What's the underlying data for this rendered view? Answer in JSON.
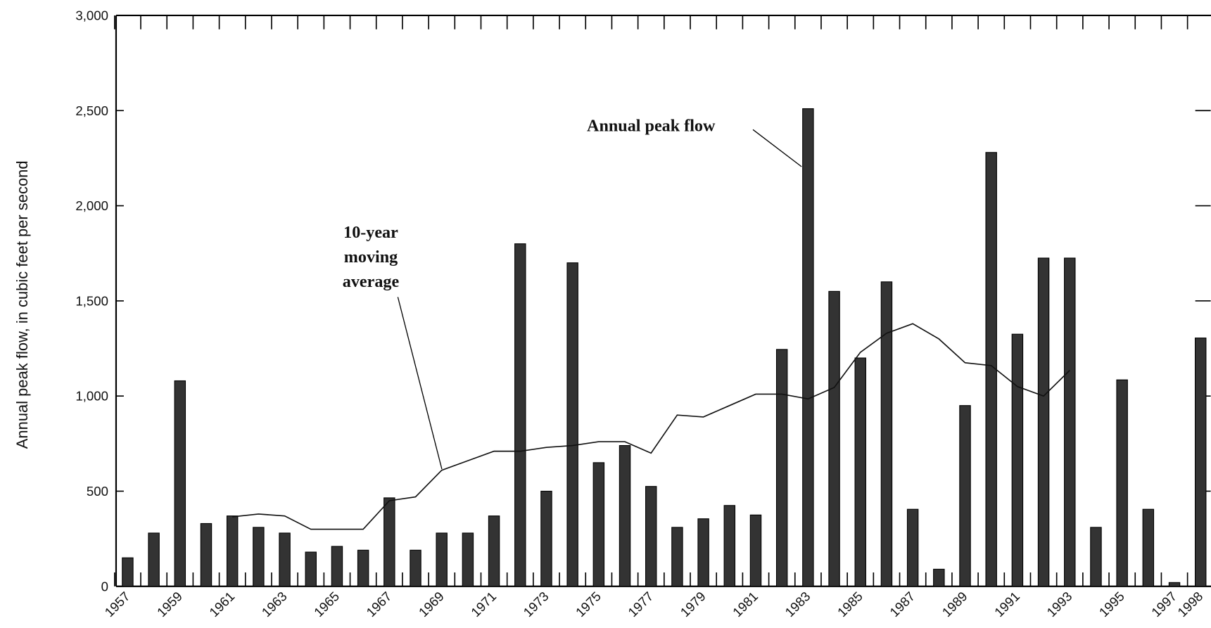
{
  "chart_data": {
    "type": "bar",
    "y_label": "Annual peak flow, in cubic feet per second",
    "categories": [
      "1957",
      null,
      "1959",
      null,
      "1961",
      null,
      "1963",
      null,
      "1965",
      null,
      "1967",
      null,
      "1969",
      null,
      "1971",
      null,
      "1973",
      null,
      "1975",
      null,
      "1977",
      null,
      "1979",
      null,
      "1981",
      null,
      "1983",
      null,
      "1985",
      null,
      "1987",
      null,
      "1989",
      null,
      "1991",
      null,
      "1993",
      null,
      "1995",
      null,
      "1997",
      "1998"
    ],
    "series": [
      {
        "name": "Annual peak flow",
        "type": "bar",
        "color": "#333333",
        "values": [
          150,
          280,
          1080,
          330,
          370,
          310,
          280,
          180,
          210,
          190,
          465,
          190,
          280,
          280,
          370,
          1800,
          500,
          1700,
          650,
          740,
          525,
          310,
          355,
          425,
          375,
          1245,
          2510,
          1550,
          1200,
          1600,
          405,
          90,
          950,
          2280,
          1325,
          1725,
          1725,
          310,
          1085,
          405,
          20,
          1305
        ]
      },
      {
        "name": "10-year moving average",
        "type": "line",
        "color": "#111111",
        "values": [
          null,
          null,
          null,
          null,
          365,
          380,
          370,
          300,
          300,
          300,
          450,
          470,
          610,
          660,
          710,
          710,
          730,
          740,
          760,
          760,
          700,
          900,
          890,
          950,
          1010,
          1010,
          985,
          1045,
          1230,
          1330,
          1380,
          1300,
          1175,
          1160,
          1050,
          1000,
          1135,
          null,
          null,
          null,
          null,
          null
        ]
      }
    ],
    "annotations": [
      {
        "lines": [
          "Annual peak flow"
        ]
      },
      {
        "lines": [
          "10-year",
          "moving",
          "average"
        ]
      }
    ],
    "ylim": [
      0,
      3000
    ],
    "yticks": [
      0,
      {
        "value": 500,
        "label": "500"
      },
      {
        "value": 1000,
        "label": "1,000"
      },
      {
        "value": 1500,
        "label": "1,500"
      },
      {
        "value": 2000,
        "label": "2,000"
      },
      {
        "value": 2500,
        "label": "2,500"
      },
      {
        "value": 3000,
        "label": "3,000"
      }
    ]
  }
}
